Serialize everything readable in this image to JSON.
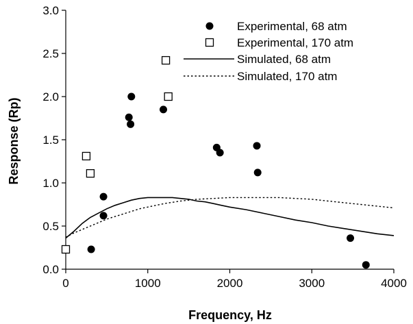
{
  "chart_data": {
    "type": "scatter",
    "xlabel": "Frequency, Hz",
    "ylabel": "Response (Rp)",
    "xlim": [
      0,
      4000
    ],
    "ylim": [
      0,
      3.0
    ],
    "x_ticks": [
      0,
      1000,
      2000,
      3000,
      4000
    ],
    "y_ticks": [
      0.0,
      0.5,
      1.0,
      1.5,
      2.0,
      2.5,
      3.0
    ],
    "x_tick_labels": [
      "0",
      "1000",
      "2000",
      "3000",
      "4000"
    ],
    "y_tick_labels": [
      "0.0",
      "0.5",
      "1.0",
      "1.5",
      "2.0",
      "2.5",
      "3.0"
    ],
    "grid": false,
    "legend_position": "top-right",
    "series": [
      {
        "name": "Experimental, 68 atm",
        "kind": "marker-filled-circle",
        "points": [
          [
            310,
            0.23
          ],
          [
            460,
            0.84
          ],
          [
            460,
            0.62
          ],
          [
            770,
            1.76
          ],
          [
            790,
            1.68
          ],
          [
            800,
            2.0
          ],
          [
            1190,
            1.85
          ],
          [
            1840,
            1.41
          ],
          [
            1880,
            1.35
          ],
          [
            2330,
            1.43
          ],
          [
            2340,
            1.12
          ],
          [
            3470,
            0.36
          ],
          [
            3660,
            0.05
          ]
        ]
      },
      {
        "name": "Experimental, 170 atm",
        "kind": "marker-open-square",
        "points": [
          [
            0,
            0.23
          ],
          [
            250,
            1.31
          ],
          [
            300,
            1.11
          ],
          [
            1220,
            2.42
          ],
          [
            1250,
            2.0
          ]
        ]
      },
      {
        "name": "Simulated, 68 atm",
        "kind": "line-solid",
        "points": [
          [
            0,
            0.36
          ],
          [
            100,
            0.44
          ],
          [
            200,
            0.53
          ],
          [
            300,
            0.6
          ],
          [
            400,
            0.65
          ],
          [
            500,
            0.7
          ],
          [
            600,
            0.74
          ],
          [
            700,
            0.77
          ],
          [
            800,
            0.8
          ],
          [
            900,
            0.82
          ],
          [
            1000,
            0.83
          ],
          [
            1100,
            0.83
          ],
          [
            1200,
            0.83
          ],
          [
            1300,
            0.83
          ],
          [
            1400,
            0.82
          ],
          [
            1500,
            0.81
          ],
          [
            1600,
            0.79
          ],
          [
            1700,
            0.78
          ],
          [
            1800,
            0.76
          ],
          [
            1900,
            0.74
          ],
          [
            2000,
            0.72
          ],
          [
            2200,
            0.69
          ],
          [
            2400,
            0.65
          ],
          [
            2600,
            0.61
          ],
          [
            2800,
            0.57
          ],
          [
            3000,
            0.54
          ],
          [
            3200,
            0.5
          ],
          [
            3400,
            0.47
          ],
          [
            3600,
            0.44
          ],
          [
            3800,
            0.41
          ],
          [
            4000,
            0.39
          ],
          [
            4050,
            0.38
          ]
        ]
      },
      {
        "name": "Simulated, 170 atm",
        "kind": "line-dotted",
        "points": [
          [
            0,
            0.37
          ],
          [
            100,
            0.42
          ],
          [
            200,
            0.46
          ],
          [
            300,
            0.5
          ],
          [
            400,
            0.54
          ],
          [
            500,
            0.58
          ],
          [
            600,
            0.61
          ],
          [
            700,
            0.64
          ],
          [
            800,
            0.67
          ],
          [
            900,
            0.7
          ],
          [
            1000,
            0.72
          ],
          [
            1200,
            0.76
          ],
          [
            1400,
            0.79
          ],
          [
            1600,
            0.81
          ],
          [
            1800,
            0.82
          ],
          [
            2000,
            0.83
          ],
          [
            2200,
            0.83
          ],
          [
            2400,
            0.83
          ],
          [
            2600,
            0.83
          ],
          [
            2800,
            0.82
          ],
          [
            3000,
            0.81
          ],
          [
            3200,
            0.79
          ],
          [
            3400,
            0.77
          ],
          [
            3600,
            0.75
          ],
          [
            3800,
            0.73
          ],
          [
            4000,
            0.71
          ],
          [
            4050,
            0.7
          ]
        ]
      }
    ]
  }
}
